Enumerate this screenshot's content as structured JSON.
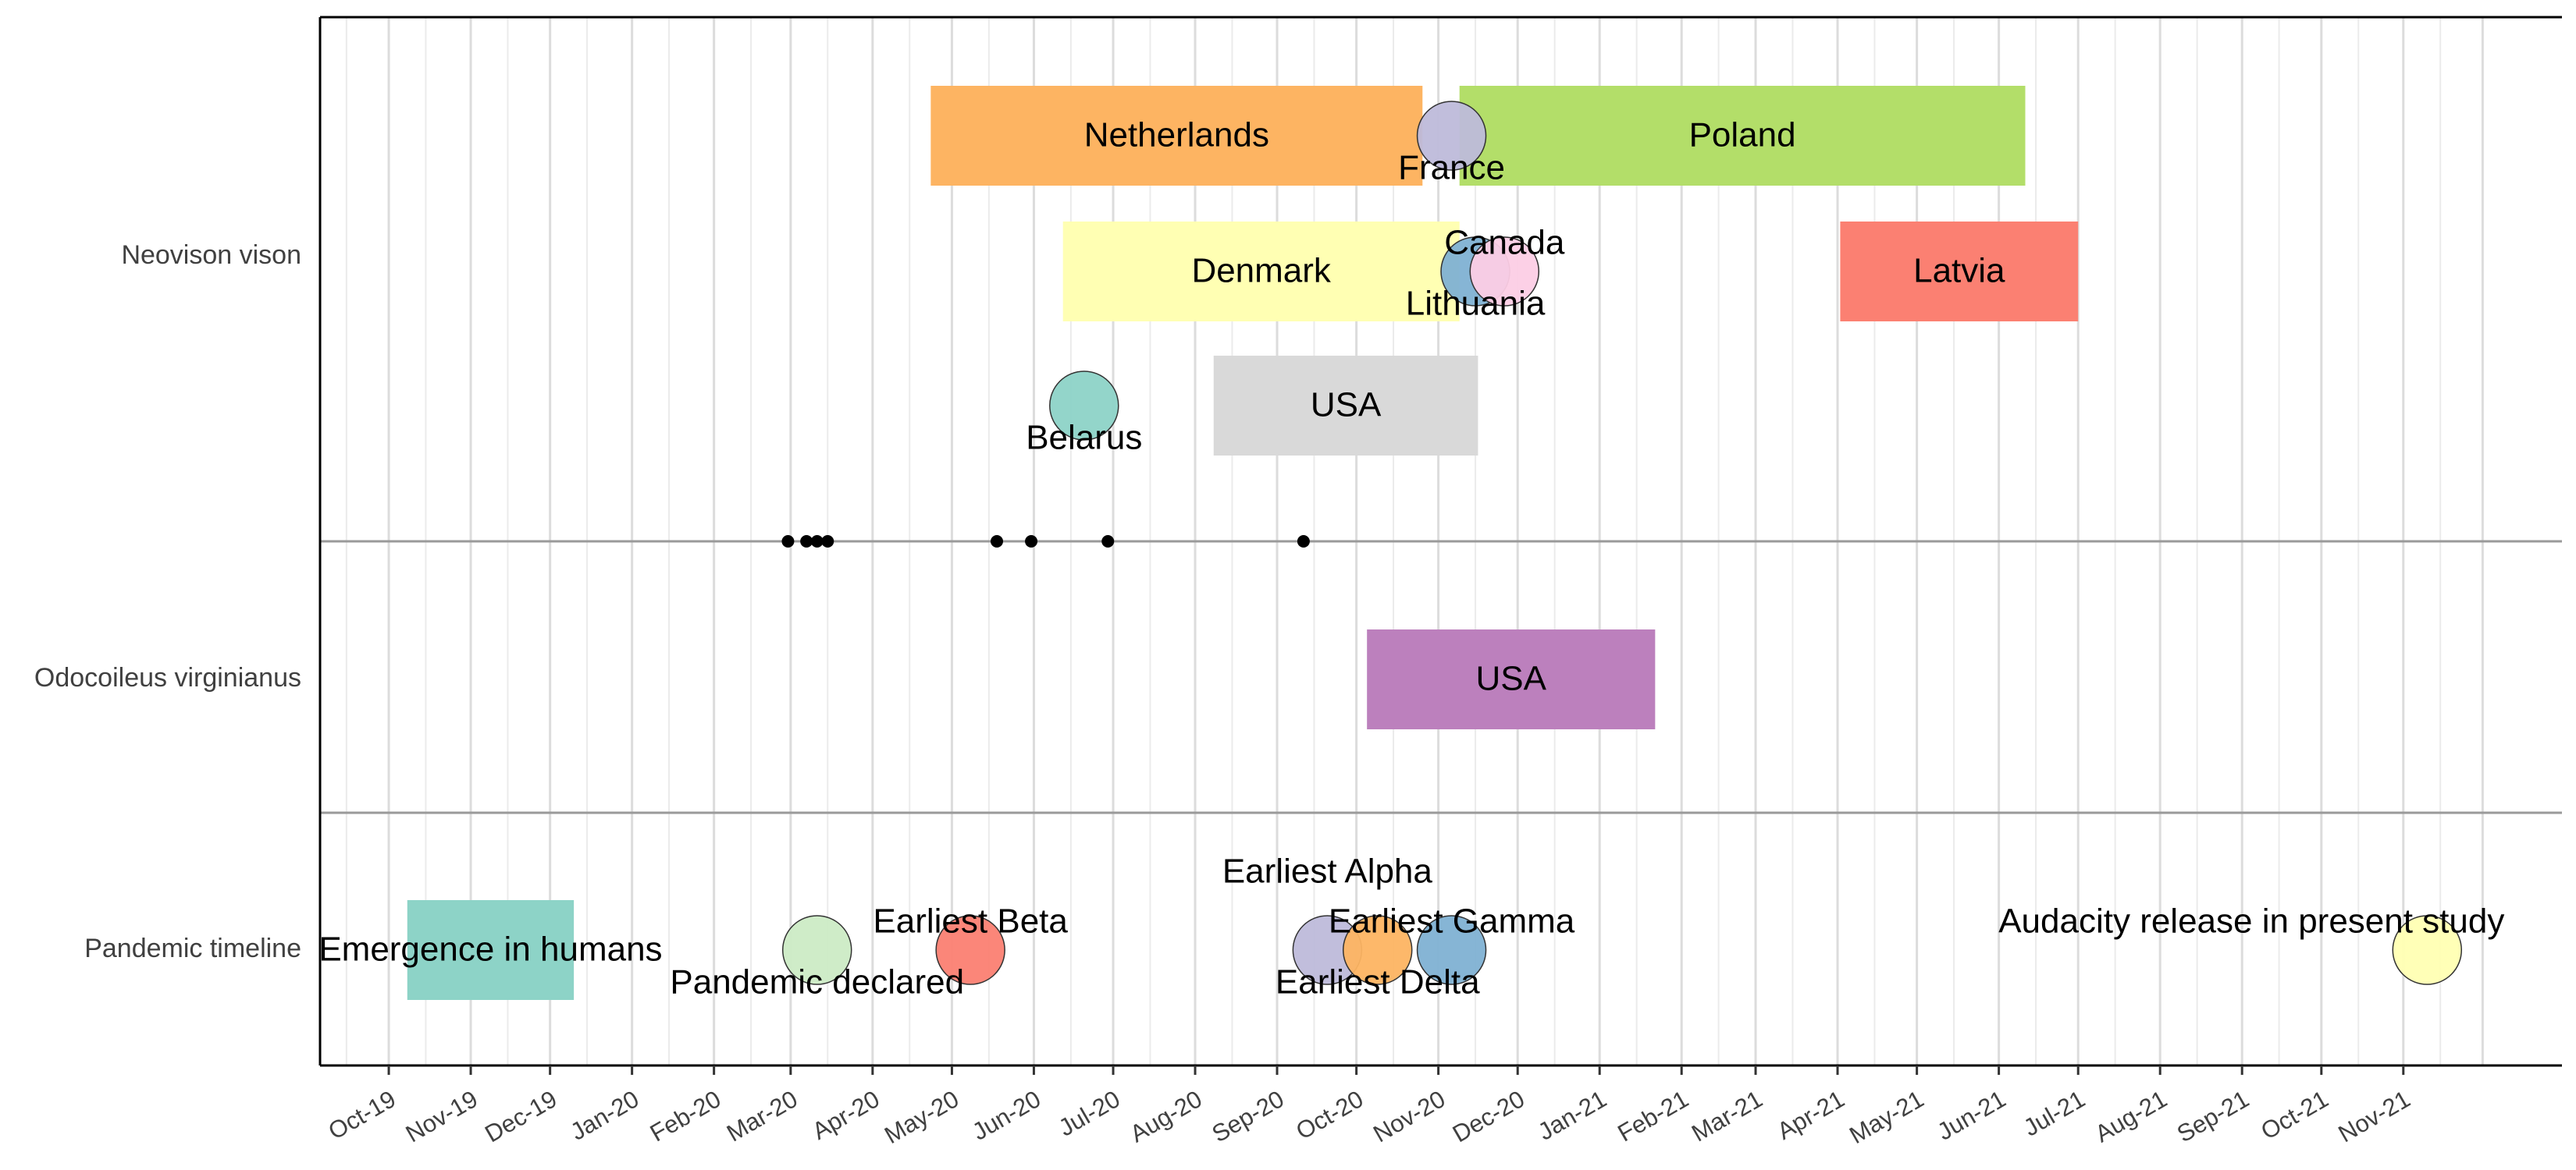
{
  "chart_data": {
    "type": "timeline",
    "title": "",
    "xlabel": "",
    "ylabel": "",
    "x_range": [
      "2019-09-05",
      "2021-12-31"
    ],
    "x_tick_labels": [
      "Oct-19",
      "Nov-19",
      "Dec-19",
      "Jan-20",
      "Feb-20",
      "Mar-20",
      "Apr-20",
      "May-20",
      "Jun-20",
      "Jul-20",
      "Aug-20",
      "Sep-20",
      "Oct-20",
      "Nov-20",
      "Dec-20",
      "Jan-21",
      "Feb-21",
      "Mar-21",
      "Apr-21",
      "May-21",
      "Jun-21",
      "Jul-21",
      "Aug-21",
      "Sep-21",
      "Oct-21",
      "Nov-21"
    ],
    "x_tick_dates": [
      "2019-10-01",
      "2019-11-01",
      "2019-12-01",
      "2020-01-01",
      "2020-02-01",
      "2020-03-01",
      "2020-04-01",
      "2020-05-01",
      "2020-06-01",
      "2020-07-01",
      "2020-08-01",
      "2020-09-01",
      "2020-10-01",
      "2020-11-01",
      "2020-12-01",
      "2021-01-01",
      "2021-02-01",
      "2021-03-01",
      "2021-04-01",
      "2021-05-01",
      "2021-06-01",
      "2021-07-01",
      "2021-08-01",
      "2021-09-01",
      "2021-10-01",
      "2021-11-01"
    ],
    "grid": true,
    "rows": [
      "Neovison vison",
      "Odocoileus virginianus",
      "Pandemic timeline"
    ],
    "intervals": [
      {
        "row": "Neovison vison",
        "lane": 1,
        "label": "Netherlands",
        "start": "2020-04-23",
        "end": "2020-10-26",
        "color": "#FDB462"
      },
      {
        "row": "Neovison vison",
        "lane": 1,
        "label": "Poland",
        "start": "2020-11-09",
        "end": "2021-06-11",
        "color": "#B3DE69"
      },
      {
        "row": "Neovison vison",
        "lane": 2,
        "label": "Denmark",
        "start": "2020-06-12",
        "end": "2020-11-09",
        "color": "#FFFFB3"
      },
      {
        "row": "Neovison vison",
        "lane": 2,
        "label": "Latvia",
        "start": "2021-04-02",
        "end": "2021-07-01",
        "color": "#FB8072"
      },
      {
        "row": "Neovison vison",
        "lane": 3,
        "label": "USA",
        "start": "2020-08-08",
        "end": "2020-11-16",
        "color": "#D9D9D9"
      },
      {
        "row": "Odocoileus virginianus",
        "lane": 1,
        "label": "USA",
        "start": "2020-10-05",
        "end": "2021-01-22",
        "color": "#BC80BD"
      },
      {
        "row": "Pandemic timeline",
        "lane": 1,
        "label": "Emergence in humans",
        "start": "2019-10-08",
        "end": "2019-12-10",
        "color": "#8DD3C7"
      }
    ],
    "events": [
      {
        "row": "Neovison vison",
        "lane": 1,
        "label": "France",
        "date": "2020-11-06",
        "color": "#BEBADA",
        "label_pos": "below"
      },
      {
        "row": "Neovison vison",
        "lane": 2,
        "label": "Lithuania",
        "date": "2020-11-15",
        "color": "#80B1D3",
        "label_pos": "below"
      },
      {
        "row": "Neovison vison",
        "lane": 2,
        "label": "Canada",
        "date": "2020-11-26",
        "color": "#FCCDE5",
        "label_pos": "above"
      },
      {
        "row": "Neovison vison",
        "lane": 3,
        "label": "Belarus",
        "date": "2020-06-20",
        "color": "#8DD3C7",
        "label_pos": "below"
      },
      {
        "row": "Pandemic timeline",
        "lane": 1,
        "label": "Pandemic declared",
        "date": "2020-03-11",
        "color": "#CCEBC5",
        "label_pos": "below"
      },
      {
        "row": "Pandemic timeline",
        "lane": 1,
        "label": "Earliest Beta",
        "date": "2020-05-08",
        "color": "#FB8072",
        "label_pos": "above"
      },
      {
        "row": "Pandemic timeline",
        "lane": 1,
        "label": "Earliest Alpha",
        "date": "2020-09-20",
        "color": "#BEBADA",
        "label_pos": "above_high"
      },
      {
        "row": "Pandemic timeline",
        "lane": 1,
        "label": "Earliest Delta",
        "date": "2020-10-09",
        "color": "#FDB462",
        "label_pos": "below"
      },
      {
        "row": "Pandemic timeline",
        "lane": 1,
        "label": "Earliest Gamma",
        "date": "2020-11-06",
        "color": "#80B1D3",
        "label_pos": "above"
      },
      {
        "row": "Pandemic timeline",
        "lane": 1,
        "label": "Audacity release in present study",
        "date": "2021-11-10",
        "color": "#FFFFB3",
        "label_pos": "above"
      }
    ],
    "points": [
      {
        "row_boundary": "Neovison vison",
        "date": "2020-02-29"
      },
      {
        "row_boundary": "Neovison vison",
        "date": "2020-03-07"
      },
      {
        "row_boundary": "Neovison vison",
        "date": "2020-03-11"
      },
      {
        "row_boundary": "Neovison vison",
        "date": "2020-03-15"
      },
      {
        "row_boundary": "Neovison vison",
        "date": "2020-05-18"
      },
      {
        "row_boundary": "Neovison vison",
        "date": "2020-05-31"
      },
      {
        "row_boundary": "Neovison vison",
        "date": "2020-06-29"
      },
      {
        "row_boundary": "Neovison vison",
        "date": "2020-09-11"
      }
    ]
  }
}
